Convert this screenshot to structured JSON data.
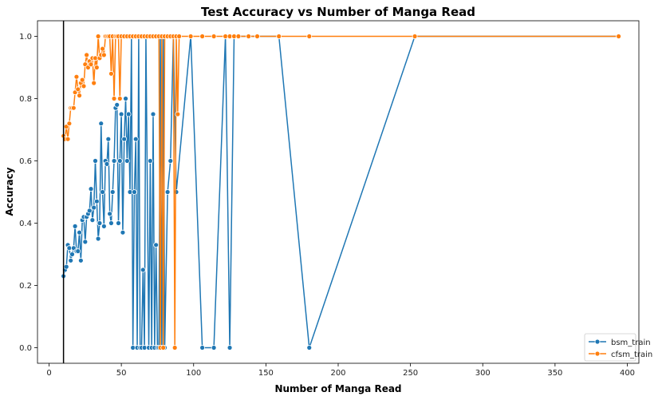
{
  "chart_data": {
    "type": "line",
    "title": "Test Accuracy vs Number of Manga Read",
    "xlabel": "Number of Manga Read",
    "ylabel": "Accuracy",
    "xlim": [
      -8,
      408
    ],
    "ylim": [
      -0.05,
      1.05
    ],
    "xticks": [
      0,
      50,
      100,
      150,
      200,
      250,
      300,
      350,
      400
    ],
    "yticks": [
      0.0,
      0.2,
      0.4,
      0.6,
      0.8,
      1.0
    ],
    "xtick_labels": [
      "0",
      "50",
      "100",
      "150",
      "200",
      "250",
      "300",
      "350",
      "400"
    ],
    "ytick_labels": [
      "0.0",
      "0.2",
      "0.4",
      "0.6",
      "0.8",
      "1.0"
    ],
    "vline_x": 10,
    "legend_position": "lower-right",
    "series": [
      {
        "name": "bsm_train",
        "color": "#1f77b4",
        "x": [
          10,
          11,
          12,
          13,
          14,
          15,
          16,
          17,
          18,
          19,
          20,
          21,
          22,
          23,
          24,
          25,
          26,
          27,
          28,
          29,
          30,
          31,
          32,
          33,
          34,
          35,
          36,
          37,
          38,
          39,
          40,
          41,
          42,
          43,
          44,
          45,
          46,
          47,
          48,
          49,
          50,
          51,
          52,
          53,
          54,
          55,
          56,
          57,
          58,
          59,
          60,
          61,
          62,
          63,
          64,
          65,
          66,
          67,
          69,
          70,
          71,
          72,
          73,
          74,
          75,
          76,
          77,
          78,
          79,
          80,
          82,
          84,
          86,
          88,
          98,
          106,
          114,
          122,
          125,
          128,
          159,
          180,
          253,
          394
        ],
        "y": [
          0.23,
          0.25,
          0.26,
          0.33,
          0.32,
          0.28,
          0.3,
          0.32,
          0.39,
          0.31,
          0.31,
          0.37,
          0.28,
          0.41,
          0.42,
          0.34,
          0.42,
          0.43,
          0.44,
          0.51,
          0.41,
          0.45,
          0.6,
          0.47,
          0.35,
          0.4,
          0.72,
          0.5,
          0.39,
          0.6,
          0.59,
          0.67,
          0.43,
          0.4,
          0.5,
          0.6,
          0.77,
          0.78,
          0.4,
          0.6,
          0.75,
          0.37,
          0.67,
          0.8,
          0.6,
          0.75,
          0.5,
          1.0,
          0.0,
          0.5,
          0.67,
          0.0,
          1.0,
          0.0,
          0.0,
          0.25,
          0.0,
          1.0,
          0.0,
          0.6,
          0.0,
          0.75,
          0.0,
          0.33,
          0.0,
          0.0,
          1.0,
          0.0,
          1.0,
          0.0,
          0.5,
          0.6,
          1.0,
          0.5,
          1.0,
          0.0,
          0.0,
          1.0,
          0.0,
          1.0,
          1.0,
          0.0,
          1.0,
          1.0
        ]
      },
      {
        "name": "cfsm_train",
        "color": "#ff7f0e",
        "x": [
          10,
          11,
          12,
          13,
          14,
          15,
          16,
          17,
          18,
          19,
          20,
          21,
          22,
          23,
          24,
          25,
          26,
          27,
          28,
          29,
          30,
          31,
          32,
          33,
          34,
          35,
          36,
          37,
          38,
          39,
          40,
          41,
          42,
          43,
          44,
          45,
          46,
          47,
          48,
          49,
          50,
          52,
          54,
          56,
          58,
          60,
          62,
          64,
          66,
          68,
          70,
          72,
          74,
          76,
          77,
          78,
          79,
          80,
          82,
          84,
          86,
          87,
          88,
          89,
          90,
          98,
          106,
          114,
          122,
          125,
          128,
          131,
          138,
          144,
          159,
          180,
          253,
          394
        ],
        "y": [
          0.68,
          0.67,
          0.71,
          0.67,
          0.72,
          0.77,
          0.77,
          0.77,
          0.82,
          0.87,
          0.83,
          0.81,
          0.85,
          0.86,
          0.84,
          0.91,
          0.94,
          0.9,
          0.92,
          0.91,
          0.93,
          0.85,
          0.93,
          0.9,
          1.0,
          0.93,
          0.94,
          0.96,
          0.94,
          1.0,
          1.0,
          1.0,
          1.0,
          0.88,
          1.0,
          0.8,
          1.0,
          1.0,
          1.0,
          0.8,
          1.0,
          1.0,
          1.0,
          1.0,
          1.0,
          1.0,
          1.0,
          1.0,
          1.0,
          1.0,
          1.0,
          1.0,
          1.0,
          1.0,
          0.0,
          1.0,
          0.0,
          1.0,
          1.0,
          1.0,
          1.0,
          0.0,
          1.0,
          0.75,
          1.0,
          1.0,
          1.0,
          1.0,
          1.0,
          1.0,
          1.0,
          1.0,
          1.0,
          1.0,
          1.0,
          1.0,
          1.0,
          1.0
        ]
      }
    ]
  }
}
